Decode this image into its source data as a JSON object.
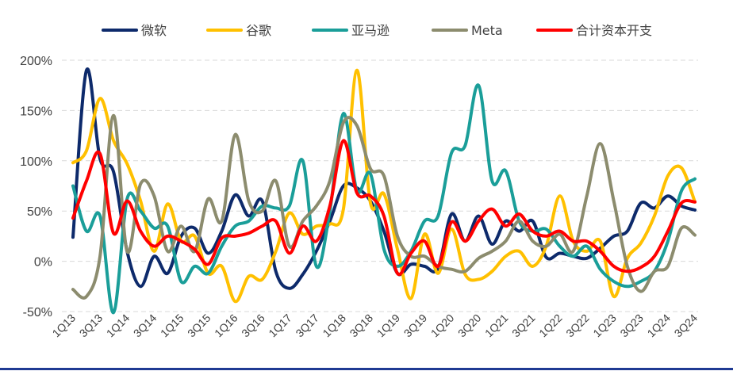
{
  "chart_data": {
    "type": "line",
    "title": "",
    "xlabel": "",
    "ylabel": "",
    "ylim": [
      -50,
      200
    ],
    "ytick_values": [
      -50,
      0,
      50,
      100,
      150,
      200
    ],
    "ytick_labels": [
      "-50%",
      "0%",
      "50%",
      "100%",
      "150%",
      "200%"
    ],
    "grid": true,
    "legend_position": "top",
    "x_tick_labels": [
      "1Q13",
      "3Q13",
      "1Q14",
      "3Q14",
      "1Q15",
      "3Q15",
      "1Q16",
      "3Q16",
      "1Q17",
      "3Q17",
      "1Q18",
      "3Q18",
      "1Q19",
      "3Q19",
      "1Q20",
      "3Q20",
      "1Q21",
      "3Q21",
      "1Q22",
      "3Q22",
      "1Q23",
      "3Q23",
      "1Q24",
      "3Q24"
    ],
    "x": [
      "1Q13",
      "2Q13",
      "3Q13",
      "4Q13",
      "1Q14",
      "2Q14",
      "3Q14",
      "4Q14",
      "1Q15",
      "2Q15",
      "3Q15",
      "4Q15",
      "1Q16",
      "2Q16",
      "3Q16",
      "4Q16",
      "1Q17",
      "2Q17",
      "3Q17",
      "4Q17",
      "1Q18",
      "2Q18",
      "3Q18",
      "4Q18",
      "1Q19",
      "2Q19",
      "3Q19",
      "4Q19",
      "1Q20",
      "2Q20",
      "3Q20",
      "4Q20",
      "1Q21",
      "2Q21",
      "3Q21",
      "4Q21",
      "1Q22",
      "2Q22",
      "3Q22",
      "4Q22",
      "1Q23",
      "2Q23",
      "3Q23",
      "4Q23",
      "1Q24",
      "2Q24",
      "3Q24"
    ],
    "series": [
      {
        "name": "微软",
        "color": "#0d2a6b",
        "values": [
          24,
          190,
          102,
          89,
          10,
          -25,
          5,
          -12,
          25,
          33,
          8,
          30,
          66,
          45,
          60,
          -10,
          -27,
          -13,
          10,
          40,
          75,
          73,
          60,
          30,
          -12,
          -3,
          -5,
          -7,
          47,
          20,
          45,
          17,
          40,
          30,
          40,
          4,
          8,
          5,
          3,
          13,
          25,
          30,
          58,
          53,
          65,
          55,
          51
        ]
      },
      {
        "name": "谷歌",
        "color": "#ffc000",
        "values": [
          98,
          110,
          162,
          120,
          97,
          60,
          10,
          57,
          20,
          25,
          -12,
          -5,
          -40,
          -15,
          -18,
          10,
          48,
          27,
          35,
          37,
          52,
          190,
          58,
          67,
          12,
          -37,
          27,
          -12,
          32,
          -13,
          -18,
          -10,
          5,
          10,
          -5,
          15,
          65,
          20,
          10,
          20,
          -35,
          3,
          18,
          45,
          85,
          93,
          59
        ]
      },
      {
        "name": "亚马逊",
        "color": "#1a9e99",
        "values": [
          75,
          30,
          45,
          -51,
          62,
          50,
          33,
          35,
          -20,
          -5,
          -12,
          15,
          35,
          40,
          55,
          53,
          55,
          100,
          -5,
          50,
          147,
          70,
          87,
          12,
          -5,
          10,
          40,
          45,
          108,
          115,
          175,
          80,
          90,
          40,
          30,
          32,
          15,
          5,
          15,
          -8,
          -20,
          -25,
          -20,
          -10,
          20,
          70,
          82
        ]
      },
      {
        "name": "Meta",
        "color": "#8c8c6e",
        "values": [
          -28,
          -35,
          5,
          145,
          10,
          77,
          65,
          10,
          35,
          10,
          62,
          40,
          126,
          60,
          50,
          80,
          15,
          40,
          55,
          80,
          138,
          135,
          92,
          85,
          25,
          5,
          5,
          -5,
          -8,
          -10,
          3,
          10,
          20,
          40,
          20,
          15,
          27,
          10,
          65,
          117,
          60,
          -5,
          -30,
          -10,
          -5,
          33,
          26
        ]
      },
      {
        "name": "合计资本开支",
        "color": "#ff0000",
        "values": [
          43,
          80,
          107,
          28,
          60,
          30,
          15,
          25,
          20,
          12,
          -3,
          23,
          25,
          28,
          35,
          40,
          8,
          35,
          20,
          55,
          120,
          68,
          65,
          45,
          -12,
          8,
          20,
          -5,
          39,
          20,
          40,
          52,
          35,
          47,
          30,
          25,
          30,
          20,
          20,
          10,
          -5,
          -10,
          -6,
          5,
          30,
          58,
          59
        ]
      }
    ]
  }
}
